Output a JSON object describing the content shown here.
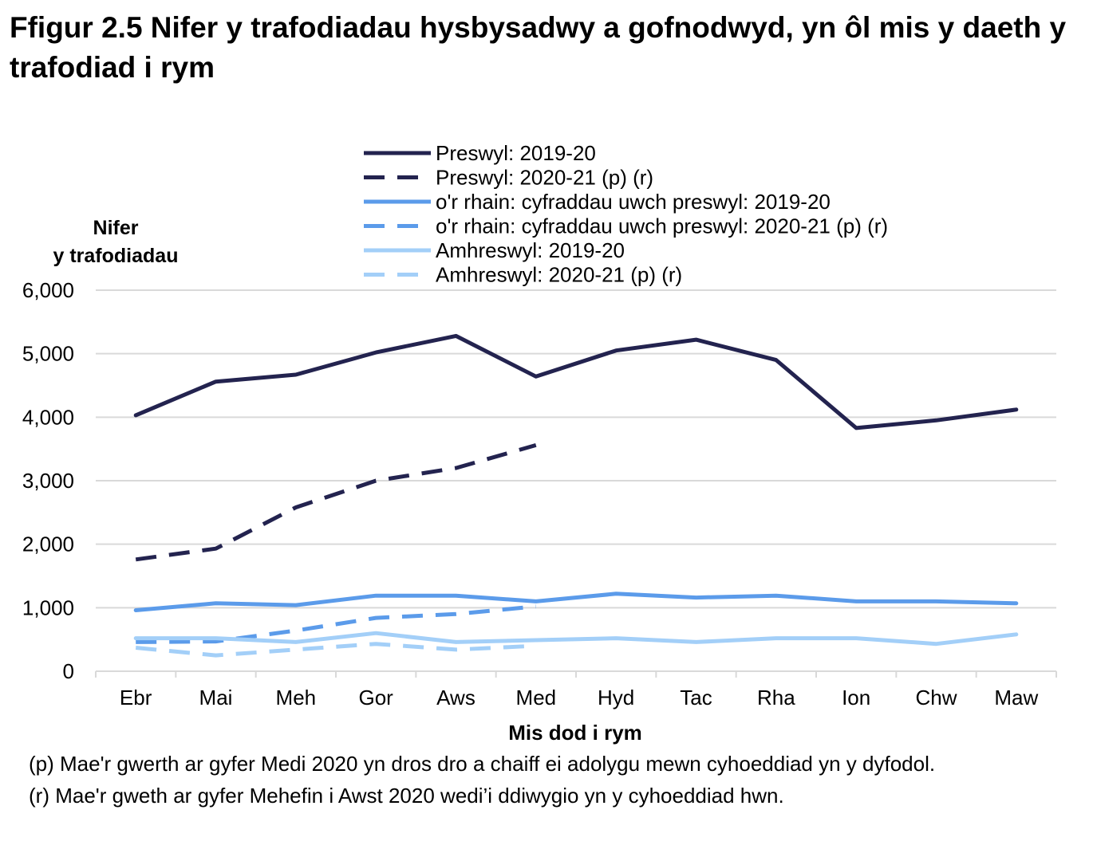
{
  "title": "Ffigur 2.5  Nifer y trafodiadau hysbysadwy a gofnodwyd, yn ôl mis y daeth y trafodiad i rym",
  "footnotes": {
    "p": "(p) Mae'r gwerth ar gyfer Medi 2020 yn dros dro a chaiff ei adolygu mewn cyhoeddiad yn y dyfodol.",
    "r": "(r) Mae'r gweth ar gyfer Mehefin i Awst 2020 wedi’i ddiwygio yn y cyhoeddiad hwn."
  },
  "chart_data": {
    "type": "line",
    "title": "",
    "xlabel": "Mis dod i rym",
    "ylabel": "Nifer y trafodiadau",
    "ylim": [
      0,
      6000
    ],
    "yticks": [
      0,
      1000,
      2000,
      3000,
      4000,
      5000,
      6000
    ],
    "ytick_labels": [
      "0",
      "1,000",
      "2,000",
      "3,000",
      "4,000",
      "5,000",
      "6,000"
    ],
    "grid": true,
    "legend_position": "top",
    "categories": [
      "Ebr",
      "Mai",
      "Meh",
      "Gor",
      "Aws",
      "Med",
      "Hyd",
      "Tac",
      "Rha",
      "Ion",
      "Chw",
      "Maw"
    ],
    "series": [
      {
        "name": "Preswyl: 2019-20",
        "color": "#23234f",
        "dash": "solid",
        "values": [
          4030,
          4560,
          4670,
          5020,
          5280,
          4640,
          5050,
          5220,
          4900,
          3830,
          3950,
          4120
        ]
      },
      {
        "name": "Preswyl: 2020-21 (p) (r)",
        "color": "#23234f",
        "dash": "dashed",
        "values": [
          1760,
          1930,
          2580,
          3000,
          3200,
          3560,
          null,
          null,
          null,
          null,
          null,
          null
        ]
      },
      {
        "name": "o'r rhain: cyfraddau uwch preswyl: 2019-20",
        "color": "#5b9bea",
        "dash": "solid",
        "values": [
          960,
          1070,
          1040,
          1190,
          1190,
          1100,
          1220,
          1160,
          1190,
          1100,
          1100,
          1070
        ]
      },
      {
        "name": "o'r rhain: cyfraddau uwch preswyl: 2020-21 (p) (r)",
        "color": "#5b9bea",
        "dash": "dashed",
        "values": [
          460,
          470,
          640,
          840,
          900,
          1020,
          null,
          null,
          null,
          null,
          null,
          null
        ]
      },
      {
        "name": "Amhreswyl: 2019-20",
        "color": "#a3cff8",
        "dash": "solid",
        "values": [
          520,
          520,
          460,
          600,
          460,
          490,
          520,
          460,
          520,
          520,
          430,
          580
        ]
      },
      {
        "name": "Amhreswyl: 2020-21 (p) (r)",
        "color": "#a3cff8",
        "dash": "dashed",
        "values": [
          370,
          250,
          340,
          430,
          340,
          400,
          null,
          null,
          null,
          null,
          null,
          null
        ]
      }
    ]
  }
}
